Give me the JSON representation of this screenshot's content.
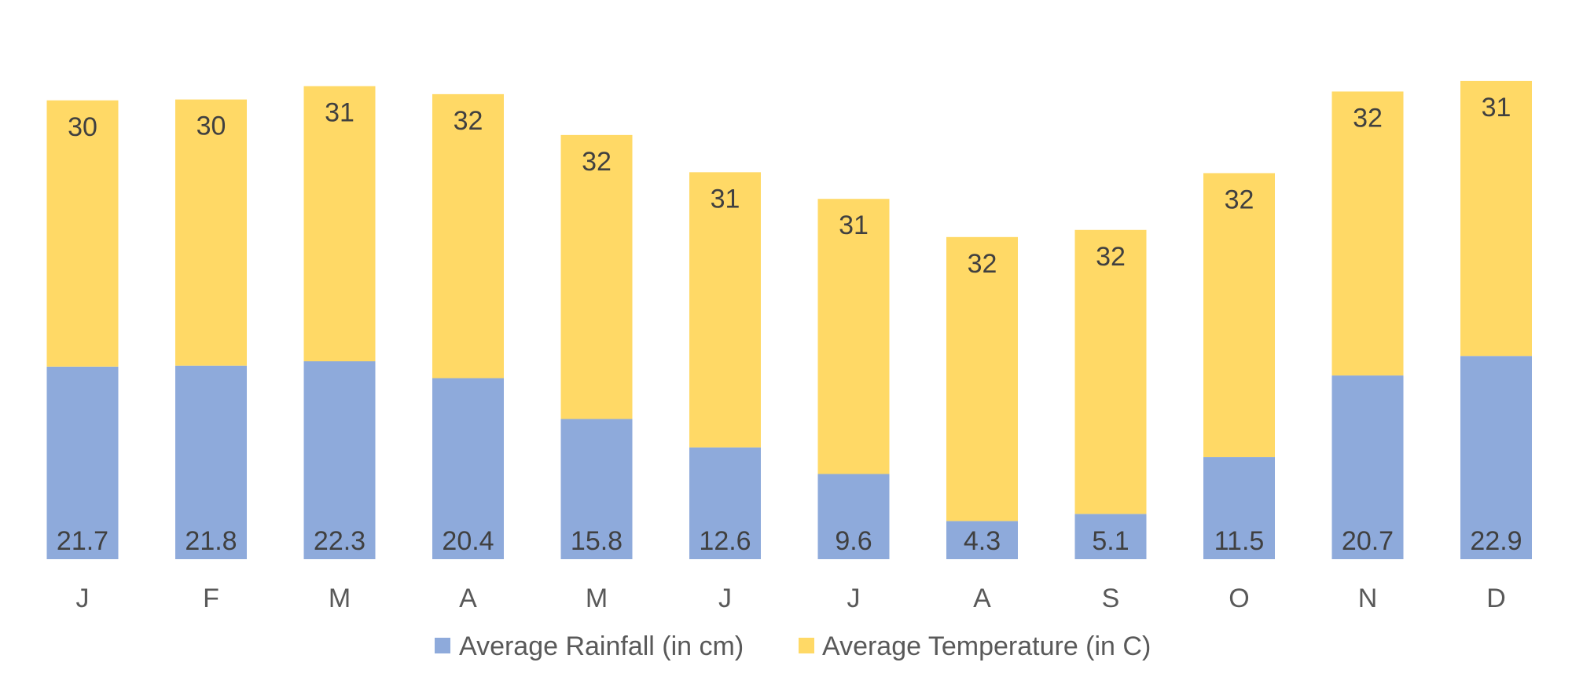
{
  "chart_data": {
    "type": "bar",
    "stacked": true,
    "title": "",
    "xlabel": "",
    "ylabel": "",
    "categories": [
      "J",
      "F",
      "M",
      "A",
      "M",
      "J",
      "J",
      "A",
      "S",
      "O",
      "N",
      "D"
    ],
    "series": [
      {
        "name": "Average Rainfall (in cm)",
        "color": "#8eaadb",
        "values": [
          21.7,
          21.8,
          22.3,
          20.4,
          15.8,
          12.6,
          9.6,
          4.3,
          5.1,
          11.5,
          20.7,
          22.9
        ]
      },
      {
        "name": "Average Temperature (in C)",
        "color": "#ffd966",
        "values": [
          30,
          30,
          31,
          32,
          32,
          31,
          31,
          32,
          32,
          32,
          32,
          31
        ]
      }
    ],
    "ylim": [
      0,
      55
    ],
    "grid": false,
    "legend_position": "bottom"
  }
}
